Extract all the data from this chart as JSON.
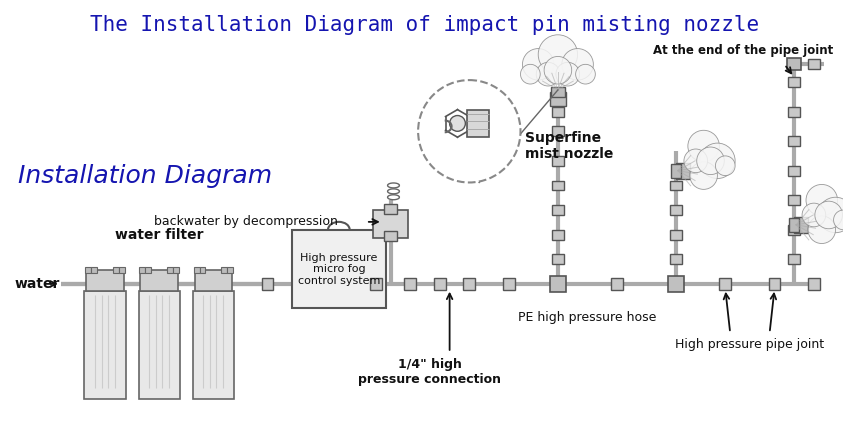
{
  "title": "The Installation Diagram of impact pin misting nozzle",
  "title_color": "#1515b0",
  "title_fontsize": 15,
  "subtitle": "Installation Diagram",
  "subtitle_color": "#1515b0",
  "subtitle_fontsize": 18,
  "bg_color": "#ffffff",
  "labels": {
    "water": "water",
    "water_filter": "water filter",
    "backwater": "backwater by decompression",
    "high_pressure_box": "High pressure\nmicro fog\ncontrol system",
    "quarter_inch": "1/4\" high\npressure connection",
    "pe_hose": "PE high pressure hose",
    "superfine": "Superfine\nmist nozzle",
    "pipe_end": "At the end of the pipe joint",
    "high_pressure_joint": "High pressure pipe joint"
  },
  "text_color": "#111111",
  "pipe_color": "#999999",
  "dark_color": "#444444"
}
